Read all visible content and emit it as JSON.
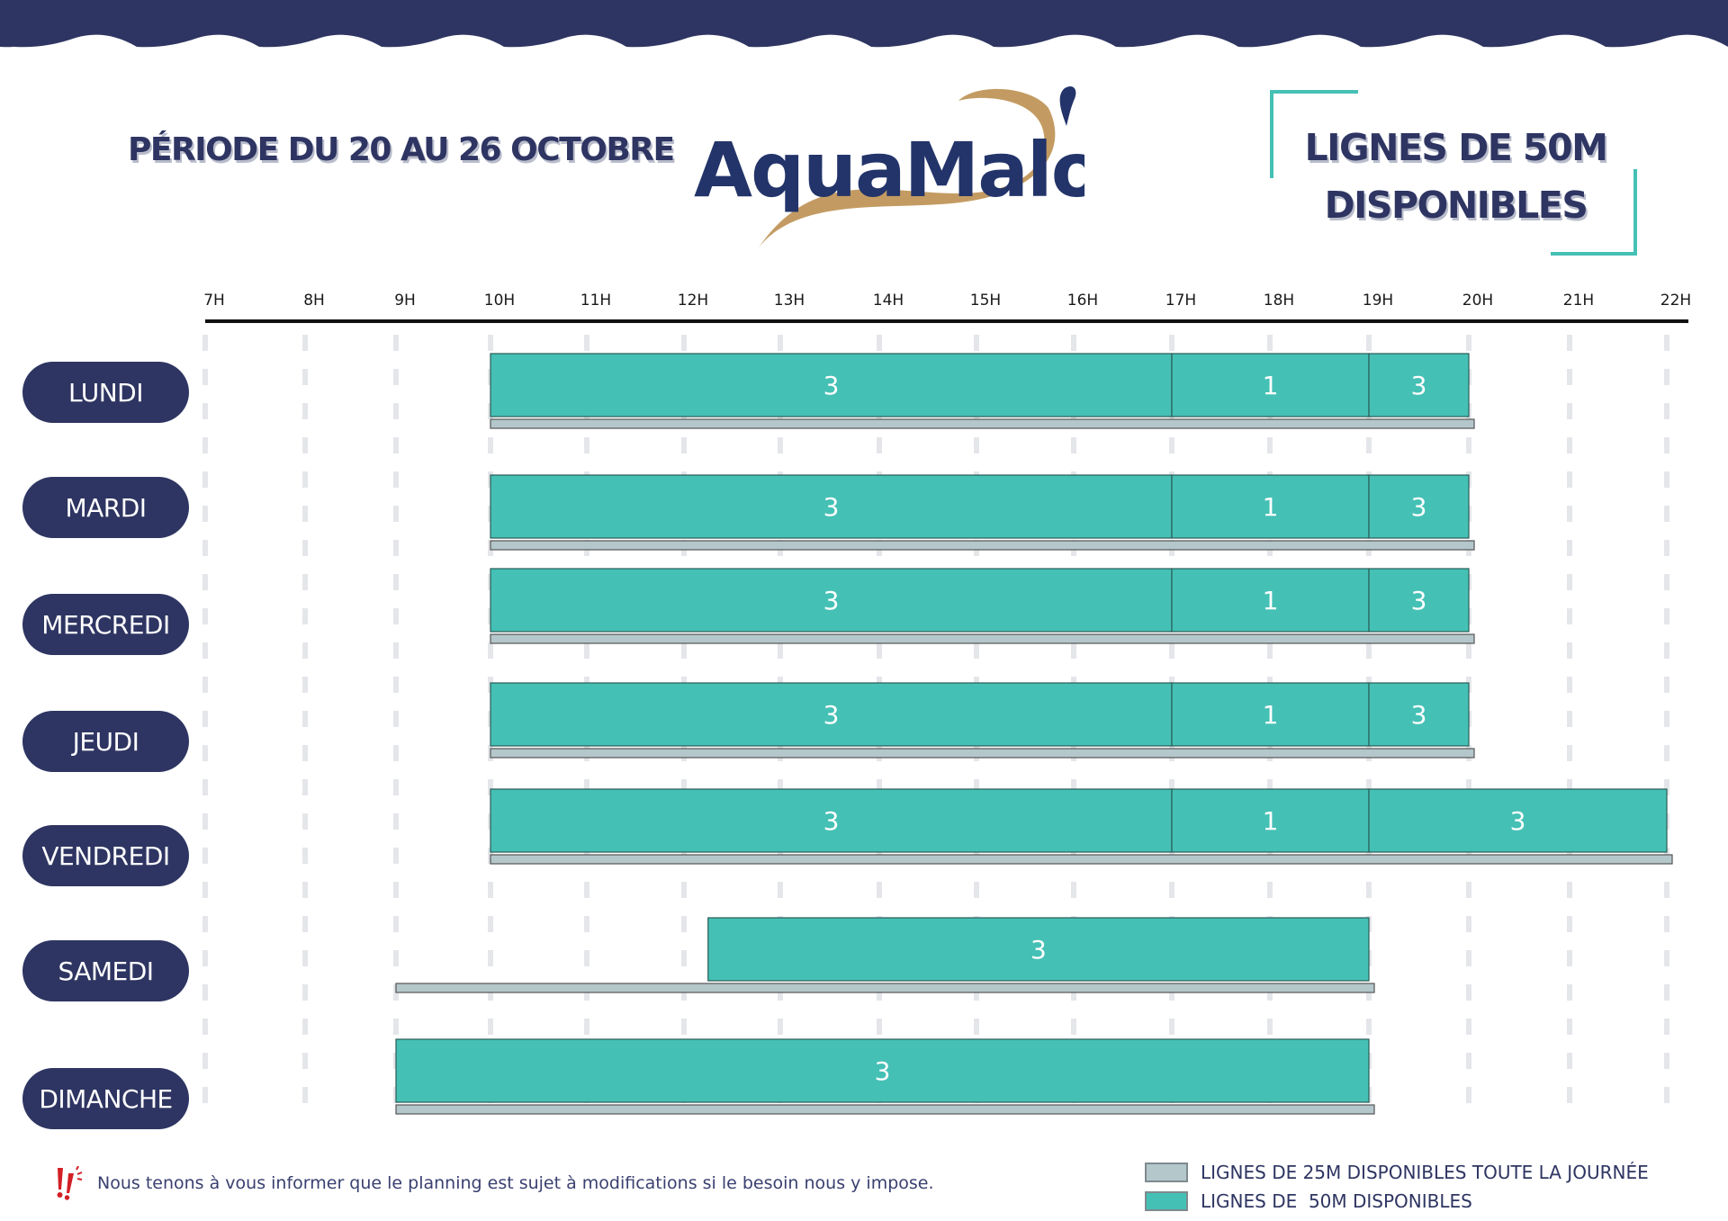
{
  "header": {
    "period": "PÉRIODE DU 20 AU 26 OCTOBRE",
    "logo_text": "AquaMalo",
    "title_line1": "LIGNES DE 50M",
    "title_line2": "DISPONIBLES"
  },
  "colors": {
    "navy": "#2e3562",
    "teal": "#45c0b5",
    "gray_25m": "#b4c7cb",
    "gold": "#c39b62",
    "alert_red": "#d21f26"
  },
  "notice": {
    "icon": "alert-exclamation-icon",
    "text": "Nous tenons à vous informer que le planning est sujet à modifications si le besoin nous y impose."
  },
  "legend": [
    {
      "label": "LIGNES DE 25M DISPONIBLES TOUTE LA JOURNÉE",
      "color": "#b4c7cb"
    },
    {
      "label": "LIGNES DE  50M DISPONIBLES",
      "color": "#45c0b5"
    }
  ],
  "chart_data": {
    "type": "gantt",
    "title": "LIGNES DE 50M DISPONIBLES",
    "subtitle": "PÉRIODE DU 20 AU 26 OCTOBRE",
    "x_unit": "hour",
    "xlim": [
      7,
      22
    ],
    "x_ticks": [
      "7H",
      "8H",
      "9H",
      "10H",
      "11H",
      "12H",
      "13H",
      "14H",
      "15H",
      "16H",
      "17H",
      "18H",
      "19H",
      "20H",
      "21H",
      "22H"
    ],
    "grid": true,
    "legend_position": "bottom-right",
    "categories": [
      "LUNDI",
      "MARDI",
      "MERCREDI",
      "JEUDI",
      "VENDREDI",
      "SAMEDI",
      "DIMANCHE"
    ],
    "series": [
      {
        "name": "LIGNES DE 50M DISPONIBLES",
        "color": "#45c0b5",
        "rows": [
          [
            {
              "start": 10,
              "end": 17,
              "lanes": 3
            },
            {
              "start": 17,
              "end": 19,
              "lanes": 1
            },
            {
              "start": 19,
              "end": 20,
              "lanes": 3
            }
          ],
          [
            {
              "start": 10,
              "end": 17,
              "lanes": 3
            },
            {
              "start": 17,
              "end": 19,
              "lanes": 1
            },
            {
              "start": 19,
              "end": 20,
              "lanes": 3
            }
          ],
          [
            {
              "start": 10,
              "end": 17,
              "lanes": 3
            },
            {
              "start": 17,
              "end": 19,
              "lanes": 1
            },
            {
              "start": 19,
              "end": 20,
              "lanes": 3
            }
          ],
          [
            {
              "start": 10,
              "end": 17,
              "lanes": 3
            },
            {
              "start": 17,
              "end": 19,
              "lanes": 1
            },
            {
              "start": 19,
              "end": 20,
              "lanes": 3
            }
          ],
          [
            {
              "start": 10,
              "end": 17,
              "lanes": 3
            },
            {
              "start": 17,
              "end": 19,
              "lanes": 1
            },
            {
              "start": 19,
              "end": 22,
              "lanes": 3
            }
          ],
          [
            {
              "start": 12.25,
              "end": 19,
              "lanes": 3
            }
          ],
          [
            {
              "start": 9,
              "end": 19,
              "lanes": 3
            }
          ]
        ]
      },
      {
        "name": "LIGNES DE 25M DISPONIBLES TOUTE LA JOURNÉE",
        "color": "#b4c7cb",
        "rows": [
          [
            {
              "start": 10,
              "end": 20
            }
          ],
          [
            {
              "start": 10,
              "end": 20
            }
          ],
          [
            {
              "start": 10,
              "end": 20
            }
          ],
          [
            {
              "start": 10,
              "end": 20
            }
          ],
          [
            {
              "start": 10,
              "end": 22
            }
          ],
          [
            {
              "start": 9,
              "end": 19
            }
          ],
          [
            {
              "start": 9,
              "end": 19
            }
          ]
        ]
      }
    ]
  }
}
